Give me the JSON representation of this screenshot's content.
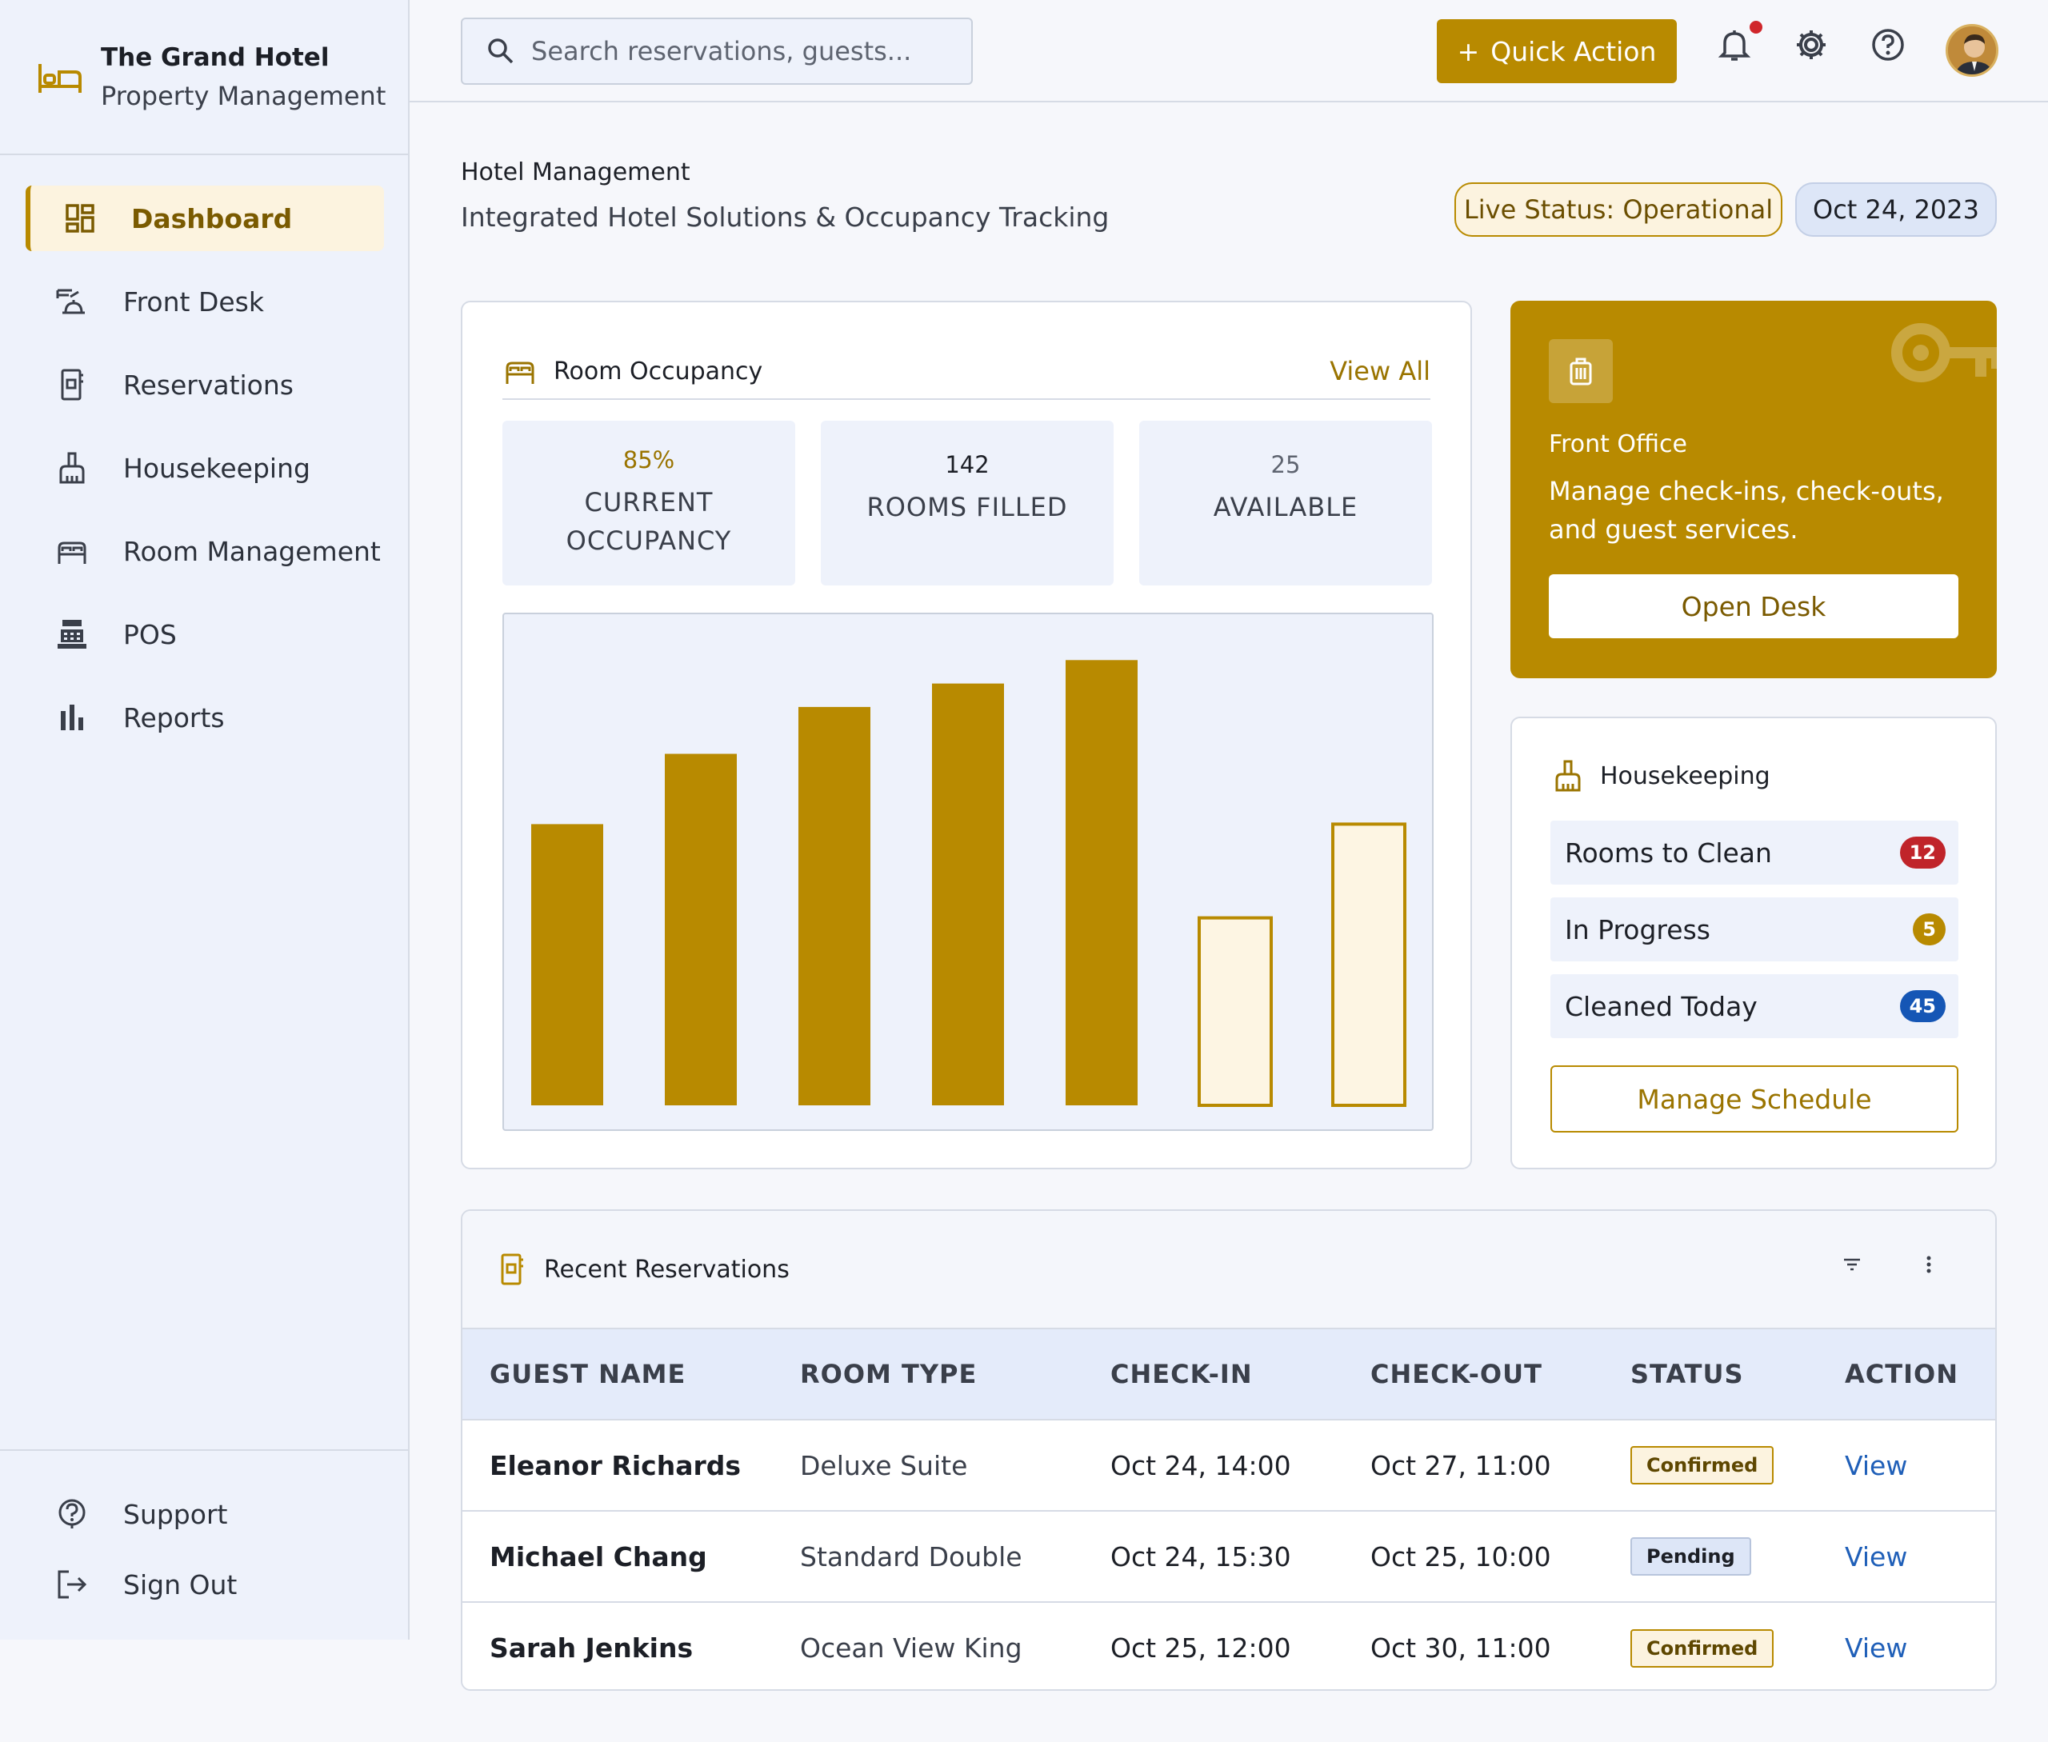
{
  "brand": {
    "title": "The Grand Hotel",
    "subtitle": "Property Management"
  },
  "nav": [
    {
      "label": "Dashboard",
      "icon": "dashboard-icon",
      "active": true
    },
    {
      "label": "Front Desk",
      "icon": "front-desk-icon"
    },
    {
      "label": "Reservations",
      "icon": "reservation-book-icon"
    },
    {
      "label": "Housekeeping",
      "icon": "broom-icon"
    },
    {
      "label": "Room Management",
      "icon": "bed-icon"
    },
    {
      "label": "POS",
      "icon": "register-icon"
    },
    {
      "label": "Reports",
      "icon": "bar-chart-icon"
    }
  ],
  "nav_bottom": [
    {
      "label": "Support",
      "icon": "help-icon"
    },
    {
      "label": "Sign Out",
      "icon": "logout-icon"
    }
  ],
  "topbar": {
    "search_placeholder": "Search reservations, guests...",
    "quick_action": "Quick Action",
    "quick_action_icon": "+"
  },
  "page": {
    "title": "Hotel Management",
    "subtitle": "Integrated Hotel Solutions & Occupancy Tracking",
    "live_status": "Live Status: Operational",
    "date": "Oct 24, 2023"
  },
  "occupancy": {
    "title": "Room Occupancy",
    "view_all": "View All",
    "stats": [
      {
        "value": "85%",
        "label_1": "CURRENT",
        "label_2": "OCCUPANCY",
        "color": "#9a7400"
      },
      {
        "value": "142",
        "label_1": "ROOMS FILLED",
        "label_2": "",
        "color": "#1c1f26"
      },
      {
        "value": "25",
        "label_1": "AVAILABLE",
        "label_2": "",
        "color": "#5e6470"
      }
    ]
  },
  "chart_data": {
    "type": "bar",
    "values": [
      60,
      75,
      85,
      90,
      95,
      40,
      60
    ],
    "ylim": [
      0,
      100
    ],
    "styles": [
      "filled",
      "filled",
      "filled",
      "filled",
      "filled",
      "outline",
      "outline"
    ],
    "fill_color": "#b88a00",
    "outline_fill": "#fdf5e3",
    "title": "",
    "xlabel": "",
    "ylabel": ""
  },
  "front_office": {
    "title": "Front Office",
    "description": "Manage check-ins, check-outs, and guest services.",
    "button": "Open Desk"
  },
  "housekeeping": {
    "title": "Housekeeping",
    "rows": [
      {
        "label": "Rooms to Clean",
        "count": "12",
        "color": "#c0242a"
      },
      {
        "label": "In Progress",
        "count": "5",
        "color": "#b88a00"
      },
      {
        "label": "Cleaned Today",
        "count": "45",
        "color": "#1556b5"
      }
    ],
    "button": "Manage Schedule"
  },
  "reservations": {
    "title": "Recent Reservations",
    "columns": [
      "GUEST NAME",
      "ROOM TYPE",
      "CHECK-IN",
      "CHECK-OUT",
      "STATUS",
      "ACTION"
    ],
    "rows": [
      {
        "guest": "Eleanor Richards",
        "room": "Deluxe Suite",
        "checkin": "Oct 24, 14:00",
        "checkout": "Oct 27, 11:00",
        "status": "Confirmed",
        "action": "View"
      },
      {
        "guest": "Michael Chang",
        "room": "Standard Double",
        "checkin": "Oct 24, 15:30",
        "checkout": "Oct 25, 10:00",
        "status": "Pending",
        "action": "View"
      },
      {
        "guest": "Sarah Jenkins",
        "room": "Ocean View King",
        "checkin": "Oct 25, 12:00",
        "checkout": "Oct 30, 11:00",
        "status": "Confirmed",
        "action": "View"
      }
    ]
  }
}
